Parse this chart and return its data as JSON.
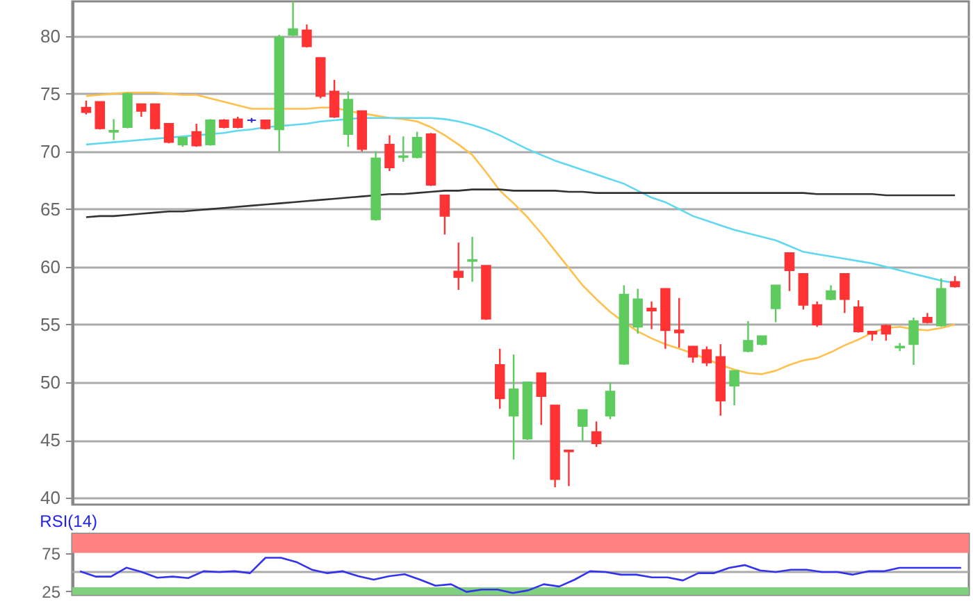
{
  "chart_data": [
    {
      "type": "candlestick",
      "categories": [
        null,
        null,
        null,
        null,
        null,
        null,
        null,
        null,
        null,
        null,
        null,
        null,
        null,
        null,
        null,
        null,
        null,
        null,
        null,
        null,
        null,
        null,
        null,
        null,
        null,
        null,
        null,
        null,
        null,
        null,
        null,
        null,
        null,
        null,
        null,
        null,
        null,
        null,
        null,
        null,
        null,
        null,
        null,
        null,
        null,
        null,
        null,
        null,
        null,
        null,
        null,
        null,
        null,
        null,
        null,
        null,
        null,
        null,
        null,
        null,
        null,
        null,
        null,
        null
      ],
      "ohlc": [
        [
          73.8,
          74.4,
          73.2,
          73.4
        ],
        [
          74.3,
          74.3,
          71.9,
          72.0
        ],
        [
          71.7,
          72.8,
          71.0,
          71.8
        ],
        [
          72.1,
          75.1,
          72.0,
          75.0
        ],
        [
          74.1,
          74.1,
          73.0,
          73.5
        ],
        [
          74.1,
          74.1,
          71.9,
          72.0
        ],
        [
          72.4,
          72.4,
          70.7,
          70.8
        ],
        [
          70.6,
          71.2,
          70.4,
          71.2
        ],
        [
          71.7,
          72.4,
          70.4,
          70.5
        ],
        [
          70.6,
          72.8,
          70.5,
          72.7
        ],
        [
          72.7,
          72.8,
          72.0,
          72.1
        ],
        [
          72.8,
          73.0,
          72.0,
          72.1
        ],
        [
          72.7,
          72.9,
          72.5,
          72.7
        ],
        [
          72.7,
          72.7,
          71.9,
          72.0
        ],
        [
          71.9,
          80.1,
          70.0,
          79.9
        ],
        [
          80.1,
          83.0,
          80.0,
          80.6
        ],
        [
          80.5,
          81.0,
          79.0,
          79.1
        ],
        [
          78.1,
          78.1,
          74.6,
          74.8
        ],
        [
          75.2,
          76.2,
          72.9,
          73.0
        ],
        [
          71.5,
          75.2,
          70.4,
          74.5
        ],
        [
          73.5,
          73.5,
          70.0,
          70.2
        ],
        [
          64.1,
          70.0,
          64.0,
          69.4
        ],
        [
          70.6,
          71.4,
          68.3,
          68.6
        ],
        [
          69.5,
          71.3,
          69.1,
          69.6
        ],
        [
          69.5,
          71.7,
          69.4,
          71.2
        ],
        [
          71.5,
          71.6,
          67.0,
          67.1
        ],
        [
          66.2,
          66.2,
          62.8,
          64.4
        ],
        [
          59.6,
          62.1,
          58.0,
          59.1
        ],
        [
          60.5,
          62.6,
          58.7,
          60.6
        ],
        [
          60.1,
          60.1,
          55.4,
          55.5
        ],
        [
          51.5,
          52.9,
          47.7,
          48.6
        ],
        [
          47.1,
          52.4,
          43.3,
          49.4
        ],
        [
          45.1,
          50.0,
          45.0,
          50.0
        ],
        [
          50.8,
          50.8,
          46.3,
          48.8
        ],
        [
          48.0,
          48.0,
          40.9,
          41.6
        ],
        [
          44.1,
          44.1,
          41.0,
          44.0
        ],
        [
          46.2,
          47.6,
          44.9,
          47.6
        ],
        [
          45.7,
          46.6,
          44.4,
          44.7
        ],
        [
          47.1,
          50.0,
          46.8,
          49.2
        ],
        [
          51.6,
          58.4,
          51.5,
          57.6
        ],
        [
          54.8,
          58.1,
          54.2,
          57.2
        ],
        [
          56.4,
          57.0,
          54.6,
          56.2
        ],
        [
          58.1,
          58.1,
          52.9,
          54.5
        ],
        [
          54.5,
          57.3,
          53.0,
          54.3
        ],
        [
          53.1,
          53.1,
          51.7,
          52.2
        ],
        [
          52.8,
          53.1,
          51.4,
          51.7
        ],
        [
          52.2,
          53.3,
          47.1,
          48.4
        ],
        [
          49.7,
          51.0,
          48.0,
          51.0
        ],
        [
          52.7,
          55.3,
          52.6,
          53.6
        ],
        [
          53.3,
          54.0,
          53.2,
          54.0
        ],
        [
          56.4,
          58.4,
          55.2,
          58.4
        ],
        [
          61.2,
          61.2,
          57.9,
          59.7
        ],
        [
          59.4,
          59.4,
          56.3,
          56.7
        ],
        [
          56.7,
          57.0,
          54.8,
          55.0
        ],
        [
          57.2,
          58.4,
          57.1,
          57.9
        ],
        [
          59.4,
          59.4,
          56.0,
          57.2
        ],
        [
          56.5,
          57.1,
          54.3,
          54.4
        ],
        [
          54.4,
          54.4,
          53.6,
          54.2
        ],
        [
          54.9,
          55.0,
          53.6,
          54.2
        ],
        [
          53.0,
          53.4,
          52.7,
          53.1
        ],
        [
          53.3,
          55.6,
          51.5,
          55.3
        ],
        [
          55.6,
          56.0,
          55.1,
          55.2
        ],
        [
          54.9,
          59.0,
          54.8,
          58.1
        ],
        [
          58.7,
          59.2,
          58.2,
          58.3
        ]
      ],
      "colors": [
        "#ff3333",
        "#ff3333",
        "#5ecb5e",
        "#5ecb5e",
        "#ff3333",
        "#ff3333",
        "#ff3333",
        "#5ecb5e",
        "#ff3333",
        "#5ecb5e",
        "#ff3333",
        "#ff3333",
        "#3333cc",
        "#ff3333",
        "#5ecb5e",
        "#5ecb5e",
        "#ff3333",
        "#ff3333",
        "#ff3333",
        "#5ecb5e",
        "#ff3333",
        "#5ecb5e",
        "#ff3333",
        "#5ecb5e",
        "#5ecb5e",
        "#ff3333",
        "#ff3333",
        "#ff3333",
        "#5ecb5e",
        "#ff3333",
        "#ff3333",
        "#5ecb5e",
        "#5ecb5e",
        "#ff3333",
        "#ff3333",
        "#ff3333",
        "#5ecb5e",
        "#ff3333",
        "#5ecb5e",
        "#5ecb5e",
        "#5ecb5e",
        "#ff3333",
        "#ff3333",
        "#ff3333",
        "#ff3333",
        "#ff3333",
        "#ff3333",
        "#5ecb5e",
        "#5ecb5e",
        "#5ecb5e",
        "#5ecb5e",
        "#ff3333",
        "#ff3333",
        "#ff3333",
        "#5ecb5e",
        "#ff3333",
        "#ff3333",
        "#ff3333",
        "#ff3333",
        "#5ecb5e",
        "#5ecb5e",
        "#ff3333",
        "#5ecb5e",
        "#ff3333"
      ],
      "series": [
        {
          "type": "line",
          "color": "#ffc04d",
          "values": [
            74.8,
            74.9,
            75.0,
            75.1,
            75.1,
            75.1,
            75.0,
            74.9,
            74.9,
            74.6,
            74.3,
            74.0,
            73.7,
            73.7,
            73.7,
            73.7,
            73.7,
            73.8,
            73.8,
            73.5,
            73.3,
            73.1,
            72.9,
            72.8,
            72.6,
            72.1,
            71.4,
            70.6,
            69.7,
            68.2,
            66.6,
            65.5,
            64.3,
            62.9,
            61.4,
            59.9,
            58.4,
            57.2,
            56.1,
            55.2,
            54.4,
            53.8,
            53.3,
            52.9,
            52.5,
            52.0,
            51.5,
            51.1,
            50.8,
            50.7,
            51.0,
            51.5,
            51.9,
            52.1,
            52.6,
            53.2,
            53.7,
            54.3,
            54.7,
            54.8,
            54.6,
            54.5,
            54.7,
            55.0
          ]
        },
        {
          "type": "line",
          "color": "#5fd8f0",
          "values": [
            70.6,
            70.7,
            70.8,
            70.9,
            71.0,
            71.1,
            71.2,
            71.3,
            71.4,
            71.5,
            71.6,
            71.8,
            71.9,
            72.1,
            72.2,
            72.3,
            72.4,
            72.6,
            72.7,
            72.8,
            72.9,
            72.9,
            72.9,
            72.9,
            72.9,
            72.9,
            72.8,
            72.6,
            72.3,
            71.9,
            71.4,
            70.8,
            70.2,
            69.7,
            69.2,
            68.8,
            68.4,
            68.0,
            67.6,
            67.2,
            66.6,
            66.0,
            65.6,
            65.0,
            64.4,
            64.0,
            63.6,
            63.2,
            62.9,
            62.6,
            62.3,
            61.8,
            61.3,
            61.1,
            60.9,
            60.7,
            60.5,
            60.3,
            60.0,
            59.7,
            59.4,
            59.1,
            58.8,
            58.6
          ]
        },
        {
          "type": "line",
          "color": "#333333",
          "values": [
            64.3,
            64.4,
            64.4,
            64.5,
            64.6,
            64.7,
            64.8,
            64.8,
            64.9,
            65.0,
            65.1,
            65.2,
            65.3,
            65.4,
            65.5,
            65.6,
            65.7,
            65.8,
            65.9,
            66.0,
            66.1,
            66.2,
            66.3,
            66.3,
            66.4,
            66.5,
            66.6,
            66.6,
            66.7,
            66.7,
            66.7,
            66.6,
            66.6,
            66.6,
            66.6,
            66.5,
            66.5,
            66.4,
            66.4,
            66.4,
            66.4,
            66.4,
            66.4,
            66.4,
            66.4,
            66.4,
            66.4,
            66.4,
            66.4,
            66.4,
            66.4,
            66.4,
            66.4,
            66.3,
            66.3,
            66.3,
            66.3,
            66.3,
            66.2,
            66.2,
            66.2,
            66.2,
            66.2,
            66.2
          ]
        }
      ],
      "ylim": [
        39.4,
        83
      ],
      "yticks": [
        40,
        45,
        50,
        55,
        60,
        65,
        70,
        75,
        80
      ],
      "grid": "y",
      "tick_labels": "y"
    },
    {
      "type": "line",
      "title": "RSI(14)",
      "categories": [
        null,
        null,
        null,
        null,
        null,
        null,
        null,
        null,
        null,
        null,
        null,
        null,
        null,
        null,
        null,
        null,
        null,
        null,
        null,
        null,
        null,
        null,
        null,
        null,
        null,
        null,
        null,
        null,
        null,
        null,
        null,
        null,
        null,
        null,
        null,
        null,
        null,
        null,
        null,
        null,
        null,
        null,
        null,
        null,
        null,
        null,
        null,
        null,
        null,
        null,
        null,
        null,
        null,
        null,
        null,
        null,
        null,
        null
      ],
      "series": [
        {
          "color": "#3333ee",
          "values": [
            51,
            44,
            44,
            55.6,
            50,
            42.5,
            44,
            42,
            51,
            50,
            51,
            48.5,
            68.6,
            68.6,
            63,
            53,
            48.5,
            51,
            44.5,
            40,
            44.5,
            47,
            40,
            32,
            34,
            24,
            27,
            27,
            22.5,
            26,
            34,
            31,
            40,
            51,
            50,
            46.5,
            46.5,
            43,
            43,
            39,
            48.5,
            48.5,
            55.5,
            59,
            52,
            50,
            53,
            53,
            50,
            50,
            46.5,
            51,
            51,
            55.5,
            55.5,
            55.5,
            55.5,
            55.5
          ]
        }
      ],
      "ylim": [
        20,
        100
      ],
      "yticks": [
        25,
        75
      ],
      "tick_labels": "y",
      "bands": [
        {
          "axis": "y",
          "from": 75,
          "to": 100,
          "color": "#ff8080"
        },
        {
          "axis": "y",
          "from": 20,
          "to": 30,
          "color": "#80d080"
        }
      ],
      "ref_lines": [
        {
          "axis": "y",
          "value": 50,
          "color": "#aaaaaa"
        }
      ]
    }
  ]
}
